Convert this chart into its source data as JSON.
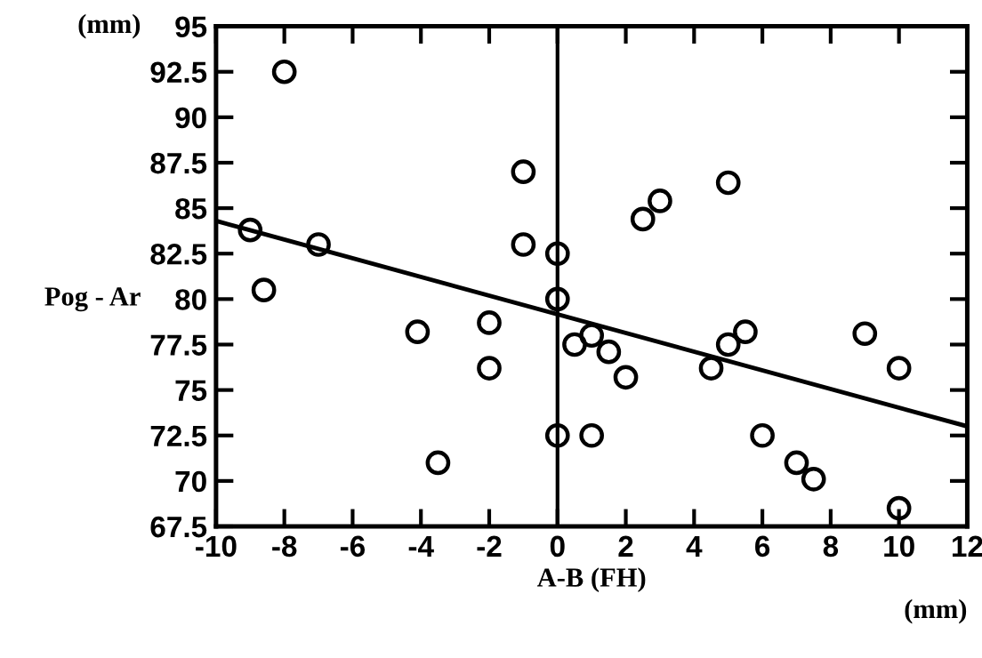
{
  "chart_data": {
    "type": "scatter",
    "xlabel": "A-B (FH)",
    "ylabel": "Pog - Ar",
    "annotations": [
      "(mm)",
      "(mm)"
    ],
    "series": [
      {
        "color": "#000000",
        "marker": "circle",
        "x": [
          -8,
          -9,
          -8.6,
          -7,
          -1,
          -1,
          0,
          0,
          -4.1,
          -2,
          -2,
          -3.5,
          0,
          1,
          0.5,
          1,
          1.5,
          2,
          2.5,
          3,
          5,
          4.5,
          5,
          5.5,
          6,
          7,
          7.5,
          9,
          10,
          10
        ],
        "values": [
          92.5,
          83.8,
          80.5,
          83,
          87,
          83,
          82.5,
          80,
          78.2,
          78.7,
          76.2,
          71,
          72.5,
          72.5,
          77.5,
          78,
          77.1,
          75.7,
          84.4,
          85.4,
          86.4,
          76.2,
          77.5,
          78.2,
          72.5,
          71,
          70.1,
          78.1,
          76.2,
          68.5
        ]
      },
      {
        "type": "line",
        "color": "#000000",
        "x": [
          -10,
          12
        ],
        "values": [
          84.3,
          73.0
        ]
      }
    ],
    "ref_lines": [
      {
        "axis": "x",
        "value": 0,
        "color": "#000000"
      }
    ],
    "xlim": [
      -10,
      12
    ],
    "xticks": [
      -10,
      -8,
      -6,
      -4,
      -2,
      0,
      2,
      4,
      6,
      8,
      10,
      12
    ],
    "ylim": [
      67.5,
      95
    ],
    "yticks": [
      67.5,
      70,
      72.5,
      75,
      77.5,
      80,
      82.5,
      85,
      87.5,
      90,
      92.5,
      95
    ],
    "grid": false,
    "legend": false
  }
}
